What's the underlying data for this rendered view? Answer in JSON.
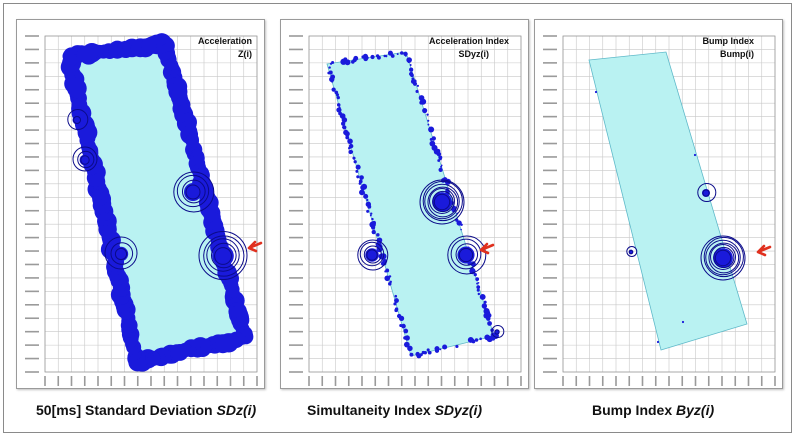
{
  "panels": [
    {
      "title_line1": "Acceleration",
      "title_line2": "Z(i)",
      "caption_text": "50[ms] Standard Deviation ",
      "caption_symbol": "SDz(i)",
      "arrow": true
    },
    {
      "title_line1": "Acceleration Index",
      "title_line2": "SDyz(i)",
      "caption_text": "Simultaneity Index ",
      "caption_symbol": "SDyz(i)",
      "arrow": true
    },
    {
      "title_line1": "Bump Index",
      "title_line2": "Bump(i)",
      "caption_text": "Bump Index ",
      "caption_symbol": "Byz(i)",
      "arrow": true
    }
  ],
  "colors": {
    "route_fill": "#b9f2f2",
    "route_edge": "#5fb9c9",
    "marker": "#1a1adb",
    "ring": "#0b0b8a",
    "arrow": "#e0301e",
    "grid": "#c8c8c8"
  }
}
